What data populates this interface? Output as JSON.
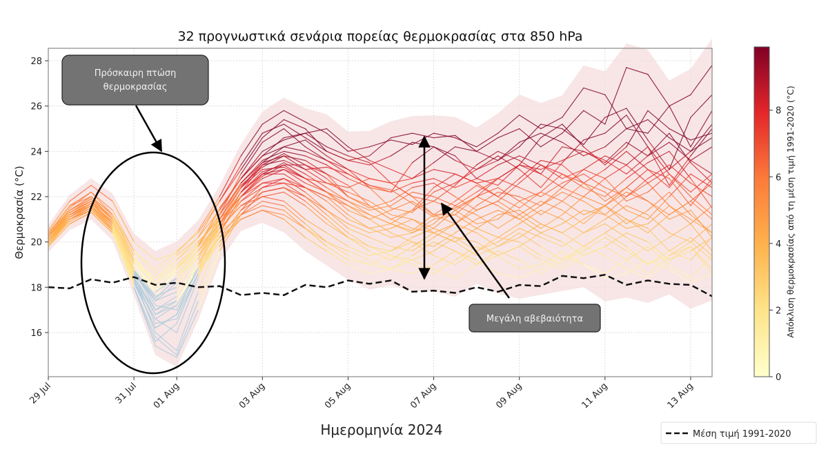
{
  "chart_data": {
    "type": "line",
    "title": "32 προγνωστικά σενάρια πορείας θερμοκρασίας στα 850 hPa",
    "xlabel": "Ημερομηνία 2024",
    "ylabel": "Θερμοκρασία (°C)",
    "xlim": [
      "2024-07-29T00:00",
      "2024-08-13T12:00"
    ],
    "ylim": [
      14.05,
      28.55
    ],
    "grid": true,
    "x_ticks": [
      {
        "date": "2024-07-29",
        "label": "29 Jul"
      },
      {
        "date": "2024-07-31",
        "label": "31 Jul"
      },
      {
        "date": "2024-08-01",
        "label": "01 Aug"
      },
      {
        "date": "2024-08-03",
        "label": "03 Aug"
      },
      {
        "date": "2024-08-05",
        "label": "05 Aug"
      },
      {
        "date": "2024-08-07",
        "label": "07 Aug"
      },
      {
        "date": "2024-08-09",
        "label": "09 Aug"
      },
      {
        "date": "2024-08-11",
        "label": "11 Aug"
      },
      {
        "date": "2024-08-13",
        "label": "13 Aug"
      }
    ],
    "y_ticks": [
      16,
      18,
      20,
      22,
      24,
      26,
      28
    ],
    "x_step_hours": 12,
    "x_start": "2024-07-29T00:00",
    "climatology": {
      "name": "Μέση τιμή 1991-2020",
      "style": "dashed",
      "color": "#111111",
      "values": [
        18.0,
        17.95,
        18.35,
        18.2,
        18.45,
        18.1,
        18.2,
        18.0,
        18.05,
        17.65,
        17.75,
        17.65,
        18.1,
        18.0,
        18.3,
        18.15,
        18.3,
        17.8,
        17.85,
        17.75,
        18.0,
        17.8,
        18.1,
        18.05,
        18.5,
        18.4,
        18.55,
        18.1,
        18.3,
        18.15,
        18.1,
        17.6
      ]
    },
    "members": [
      [
        20.5,
        21.8,
        22.5,
        21.8,
        20.0,
        19.2,
        19.5,
        20.5,
        22.0,
        23.8,
        25.2,
        25.8,
        25.3,
        24.8,
        24.0,
        24.2,
        24.5,
        24.3,
        24.8,
        24.6,
        24.2,
        24.8,
        25.6,
        25.0,
        25.5,
        26.8,
        26.5,
        25.0,
        24.8,
        26.0,
        26.5,
        27.8
      ],
      [
        20.2,
        21.5,
        22.2,
        21.2,
        19.2,
        18.2,
        19.2,
        20.2,
        21.8,
        23.2,
        24.6,
        25.4,
        25.0,
        24.0,
        23.6,
        23.8,
        24.6,
        24.8,
        24.6,
        24.7,
        24.0,
        23.6,
        24.2,
        25.2,
        25.0,
        24.3,
        25.5,
        25.9,
        24.5,
        23.2,
        25.5,
        26.5
      ],
      [
        20.0,
        21.2,
        21.8,
        20.8,
        18.6,
        17.6,
        18.8,
        19.8,
        21.5,
        22.8,
        24.0,
        24.5,
        24.8,
        25.0,
        24.2,
        23.6,
        23.2,
        22.8,
        23.5,
        24.2,
        24.0,
        24.6,
        25.0,
        24.2,
        24.8,
        25.8,
        25.2,
        27.7,
        27.4,
        26.0,
        24.2,
        25.8
      ],
      [
        20.3,
        21.6,
        22.0,
        21.0,
        18.8,
        17.0,
        17.6,
        19.2,
        21.2,
        23.0,
        24.4,
        25.0,
        24.2,
        23.6,
        23.0,
        22.5,
        22.2,
        23.5,
        24.2,
        23.8,
        22.8,
        22.5,
        23.4,
        24.6,
        25.2,
        24.2,
        23.4,
        24.2,
        25.8,
        25.0,
        24.5,
        24.8
      ],
      [
        19.8,
        21.0,
        21.6,
        20.5,
        18.2,
        16.2,
        16.8,
        19.0,
        21.0,
        22.6,
        23.5,
        24.2,
        24.5,
        23.8,
        23.2,
        22.4,
        21.5,
        21.3,
        22.2,
        22.6,
        23.2,
        23.8,
        23.2,
        22.4,
        23.5,
        24.5,
        24.8,
        25.6,
        24.2,
        22.5,
        23.8,
        25.0
      ],
      [
        20.4,
        21.4,
        21.9,
        21.1,
        19.4,
        18.0,
        18.8,
        19.8,
        21.4,
        22.8,
        23.8,
        24.6,
        24.8,
        24.2,
        23.8,
        23.5,
        22.6,
        22.0,
        21.8,
        22.5,
        23.4,
        24.0,
        23.6,
        23.0,
        24.2,
        24.0,
        23.5,
        24.4,
        23.8,
        24.8,
        23.5,
        22.6
      ],
      [
        20.1,
        21.1,
        21.7,
        20.9,
        18.6,
        16.8,
        17.2,
        19.0,
        20.6,
        22.2,
        23.4,
        23.9,
        23.4,
        23.0,
        22.5,
        21.6,
        21.0,
        21.4,
        22.4,
        23.0,
        22.6,
        22.0,
        22.8,
        23.6,
        23.4,
        22.6,
        23.2,
        24.0,
        23.2,
        22.4,
        23.6,
        24.2
      ],
      [
        20.2,
        21.3,
        21.8,
        21.0,
        19.0,
        17.8,
        18.6,
        19.6,
        21.0,
        22.4,
        23.4,
        23.6,
        23.2,
        23.3,
        23.0,
        22.5,
        22.3,
        21.7,
        21.1,
        21.5,
        22.0,
        22.8,
        23.4,
        23.0,
        22.4,
        22.0,
        22.8,
        23.4,
        24.2,
        23.0,
        22.2,
        23.0
      ],
      [
        19.9,
        21.0,
        21.5,
        20.6,
        18.4,
        16.0,
        15.2,
        17.8,
        20.4,
        22.0,
        23.0,
        23.5,
        23.0,
        22.4,
        21.8,
        21.2,
        20.8,
        20.5,
        21.2,
        21.8,
        22.5,
        22.0,
        21.5,
        22.2,
        23.0,
        22.6,
        21.8,
        22.4,
        23.2,
        22.8,
        21.6,
        22.8
      ],
      [
        20.3,
        21.2,
        21.7,
        20.9,
        19.2,
        18.4,
        19.0,
        19.9,
        21.2,
        22.5,
        23.3,
        23.8,
        23.6,
        23.0,
        22.0,
        21.5,
        21.8,
        22.4,
        22.6,
        22.0,
        21.4,
        21.8,
        22.6,
        23.4,
        23.0,
        22.4,
        22.0,
        22.8,
        23.5,
        24.0,
        22.8,
        21.5
      ],
      [
        20.0,
        21.1,
        21.6,
        20.7,
        18.0,
        15.6,
        16.4,
        18.6,
        20.6,
        22.2,
        23.1,
        23.4,
        22.8,
        22.2,
        21.4,
        21.0,
        21.4,
        21.8,
        21.2,
        20.8,
        21.6,
        22.2,
        22.0,
        21.6,
        22.4,
        23.2,
        22.8,
        21.8,
        22.2,
        23.0,
        22.0,
        21.2
      ],
      [
        20.2,
        21.3,
        21.9,
        21.0,
        18.8,
        17.2,
        17.0,
        18.8,
        20.8,
        22.4,
        23.5,
        23.8,
        23.2,
        22.6,
        22.4,
        22.8,
        22.6,
        22.0,
        21.2,
        21.2,
        22.0,
        22.4,
        21.8,
        21.2,
        21.8,
        22.6,
        22.2,
        21.4,
        21.0,
        22.0,
        23.0,
        22.4
      ],
      [
        20.1,
        21.2,
        21.6,
        20.8,
        18.6,
        17.5,
        18.4,
        19.6,
        21.0,
        22.4,
        23.2,
        23.3,
        22.8,
        22.6,
        22.2,
        21.8,
        21.2,
        21.0,
        20.6,
        21.4,
        22.0,
        21.6,
        21.0,
        21.6,
        22.2,
        21.8,
        21.2,
        22.0,
        22.6,
        21.6,
        20.8,
        21.6
      ],
      [
        19.9,
        21.0,
        21.4,
        20.5,
        18.2,
        16.6,
        16.0,
        18.4,
        20.4,
        22.0,
        22.9,
        23.4,
        23.4,
        22.8,
        22.0,
        21.6,
        21.0,
        20.6,
        20.4,
        20.8,
        21.4,
        21.8,
        21.2,
        20.6,
        21.2,
        22.0,
        21.6,
        20.8,
        21.4,
        22.2,
        21.2,
        20.4
      ],
      [
        20.2,
        21.3,
        21.8,
        21.0,
        19.0,
        18.0,
        18.8,
        19.6,
        20.8,
        22.0,
        22.8,
        23.2,
        22.8,
        22.2,
        21.6,
        21.2,
        20.8,
        20.4,
        20.8,
        21.6,
        21.2,
        20.6,
        21.2,
        21.8,
        21.4,
        20.8,
        21.6,
        22.4,
        21.8,
        21.0,
        21.4,
        20.2
      ],
      [
        20.0,
        21.0,
        21.5,
        20.6,
        18.5,
        16.4,
        16.6,
        18.6,
        20.4,
        21.8,
        22.6,
        22.8,
        22.4,
        22.0,
        21.2,
        20.6,
        20.2,
        20.4,
        21.0,
        21.2,
        20.6,
        20.2,
        20.8,
        21.4,
        21.0,
        20.4,
        21.0,
        21.6,
        21.2,
        20.4,
        20.0,
        20.8
      ],
      [
        20.3,
        21.3,
        21.8,
        21.0,
        19.2,
        18.4,
        19.2,
        20.0,
        21.0,
        22.0,
        22.6,
        22.6,
        22.0,
        21.4,
        20.8,
        20.4,
        20.6,
        21.0,
        20.4,
        20.0,
        20.6,
        21.2,
        21.4,
        20.8,
        20.4,
        21.0,
        21.6,
        21.0,
        20.4,
        21.2,
        21.8,
        21.0
      ],
      [
        19.8,
        20.8,
        21.3,
        20.4,
        18.0,
        15.8,
        15.0,
        17.4,
        19.8,
        21.4,
        22.4,
        22.8,
        22.2,
        21.4,
        20.6,
        20.2,
        19.8,
        19.6,
        20.2,
        20.8,
        20.4,
        19.8,
        20.2,
        20.8,
        20.4,
        19.8,
        20.4,
        21.0,
        20.6,
        19.6,
        19.2,
        20.2
      ],
      [
        20.1,
        21.1,
        21.6,
        20.8,
        18.8,
        17.6,
        18.0,
        19.4,
        20.6,
        21.6,
        22.2,
        22.4,
        22.0,
        21.2,
        20.4,
        19.8,
        19.6,
        20.2,
        20.6,
        20.2,
        19.6,
        20.0,
        20.6,
        20.2,
        19.8,
        20.4,
        20.8,
        20.2,
        19.6,
        20.2,
        20.8,
        19.6
      ],
      [
        20.0,
        21.0,
        21.5,
        20.6,
        18.4,
        17.0,
        17.4,
        18.8,
        20.2,
        21.4,
        22.0,
        22.2,
        21.6,
        20.8,
        20.2,
        19.8,
        19.4,
        19.2,
        19.6,
        20.2,
        20.0,
        19.4,
        19.8,
        20.4,
        20.0,
        19.4,
        19.8,
        20.4,
        20.0,
        19.2,
        19.6,
        20.2
      ],
      [
        20.2,
        21.2,
        21.7,
        20.9,
        19.0,
        17.9,
        18.6,
        19.6,
        20.6,
        21.6,
        22.0,
        21.8,
        21.0,
        20.4,
        19.8,
        19.4,
        19.6,
        20.0,
        19.4,
        19.0,
        19.6,
        20.2,
        20.0,
        19.4,
        19.0,
        19.8,
        20.4,
        19.8,
        19.0,
        19.6,
        20.2,
        19.4
      ],
      [
        19.9,
        20.9,
        21.4,
        20.5,
        18.2,
        16.2,
        16.8,
        18.6,
        20.0,
        21.2,
        21.8,
        21.6,
        20.8,
        20.0,
        19.4,
        19.0,
        18.8,
        19.4,
        20.0,
        19.6,
        19.0,
        19.4,
        19.8,
        19.2,
        18.8,
        19.4,
        19.8,
        19.2,
        18.6,
        19.4,
        19.8,
        18.8
      ],
      [
        20.1,
        21.0,
        21.5,
        20.7,
        18.8,
        17.8,
        18.4,
        19.4,
        20.4,
        21.2,
        21.6,
        21.4,
        20.6,
        19.8,
        19.2,
        19.0,
        19.4,
        19.0,
        18.6,
        19.2,
        19.8,
        19.4,
        18.8,
        19.0,
        19.6,
        19.0,
        18.6,
        19.2,
        19.8,
        19.0,
        18.4,
        19.4
      ],
      [
        20.0,
        21.0,
        21.4,
        20.6,
        18.6,
        17.4,
        17.8,
        19.0,
        20.2,
        21.0,
        21.4,
        21.0,
        20.2,
        19.6,
        19.0,
        18.6,
        18.8,
        19.2,
        18.8,
        18.4,
        19.0,
        19.6,
        19.2,
        18.6,
        19.2,
        19.8,
        19.4,
        18.8,
        18.4,
        19.2,
        19.8,
        18.6
      ],
      [
        20.2,
        21.2,
        21.7,
        20.9,
        19.1,
        18.2,
        18.9,
        19.8,
        20.8,
        21.8,
        22.4,
        22.6,
        22.4,
        22.0,
        21.6,
        21.0,
        20.4,
        20.0,
        19.8,
        20.4,
        21.0,
        21.4,
        21.0,
        20.4,
        20.8,
        21.4,
        21.2,
        20.6,
        20.8,
        21.6,
        21.0,
        20.4
      ],
      [
        20.3,
        21.4,
        22.0,
        21.2,
        19.6,
        18.6,
        19.4,
        20.2,
        21.4,
        22.8,
        23.8,
        24.2,
        24.0,
        23.6,
        23.2,
        22.8,
        22.6,
        22.8,
        23.2,
        23.0,
        22.6,
        22.8,
        23.4,
        23.2,
        23.6,
        24.0,
        23.6,
        23.0,
        23.8,
        24.4,
        23.6,
        23.0
      ],
      [
        20.2,
        21.4,
        22.0,
        21.2,
        19.4,
        18.2,
        18.8,
        19.8,
        21.2,
        22.6,
        23.6,
        24.0,
        23.8,
        23.4,
        22.8,
        22.4,
        22.2,
        22.6,
        22.8,
        22.4,
        22.8,
        23.4,
        23.8,
        23.4,
        22.8,
        23.2,
        23.8,
        23.4,
        22.6,
        23.2,
        24.0,
        24.6
      ],
      [
        20.0,
        21.1,
        21.6,
        20.7,
        18.4,
        16.8,
        17.4,
        19.0,
        20.8,
        22.2,
        23.0,
        23.2,
        22.6,
        22.2,
        21.8,
        21.4,
        21.6,
        22.2,
        22.0,
        21.6,
        22.2,
        22.8,
        22.4,
        22.0,
        22.6,
        23.0,
        22.4,
        22.0,
        22.8,
        23.4,
        22.6,
        22.0
      ],
      [
        20.1,
        21.2,
        21.7,
        20.8,
        18.7,
        17.4,
        18.2,
        19.4,
        20.8,
        22.2,
        23.0,
        23.0,
        22.4,
        21.8,
        21.0,
        20.6,
        20.8,
        21.4,
        21.8,
        21.4,
        20.8,
        21.0,
        21.8,
        22.2,
        21.8,
        21.2,
        21.6,
        22.2,
        21.8,
        21.2,
        21.8,
        22.6
      ],
      [
        19.8,
        20.8,
        21.3,
        20.4,
        18.0,
        15.4,
        14.9,
        17.0,
        19.6,
        21.2,
        22.2,
        22.4,
        21.8,
        21.0,
        20.2,
        19.6,
        19.2,
        19.8,
        20.4,
        20.0,
        19.4,
        19.8,
        20.4,
        19.8,
        19.2,
        19.6,
        20.2,
        19.6,
        19.0,
        19.4,
        20.0,
        19.2
      ],
      [
        20.4,
        21.6,
        22.2,
        21.4,
        19.6,
        18.8,
        19.6,
        20.4,
        21.8,
        23.4,
        24.8,
        25.2,
        24.6,
        24.0,
        23.6,
        23.4,
        23.8,
        24.4,
        24.2,
        23.6,
        23.2,
        23.6,
        24.4,
        24.8,
        24.4,
        23.8,
        24.2,
        25.0,
        25.4,
        24.6,
        24.0,
        25.2
      ],
      [
        20.0,
        21.0,
        21.4,
        20.5,
        18.3,
        16.6,
        17.2,
        18.8,
        20.0,
        21.0,
        21.4,
        21.2,
        20.6,
        20.0,
        19.6,
        19.2,
        18.8,
        18.6,
        19.0,
        19.6,
        19.2,
        18.6,
        18.4,
        18.8,
        19.4,
        19.0,
        18.4,
        18.6,
        19.2,
        18.8,
        18.2,
        18.6
      ]
    ],
    "member_color": "deviation from climatology (colormap YlOrRd, below 0 light blue)",
    "band_color": "#f6dede",
    "negative_color": "#a9cbdc",
    "colorbar": {
      "label": "Απόκλιση θερμοκρασίας από τη μέση τιμή 1991-2020 (°C)",
      "range": [
        0,
        9.9
      ],
      "ticks": [
        0,
        2,
        4,
        6,
        8
      ],
      "colormap": "YlOrRd"
    },
    "legend": {
      "placement": "bottom-right",
      "entries": [
        {
          "label": "Μέση τιμή 1991-2020",
          "style": "dashed",
          "color": "#111111"
        }
      ]
    },
    "annotations": [
      {
        "text_lines": [
          "Πρόσκαιρη πτώση",
          "θερμοκρασίας"
        ],
        "target": "drop around 31 Jul - 01 Aug (circled)"
      },
      {
        "text_lines": [
          "Μεγάλη αβεβαιότητα"
        ],
        "target": "spread around 07 Aug"
      }
    ]
  }
}
